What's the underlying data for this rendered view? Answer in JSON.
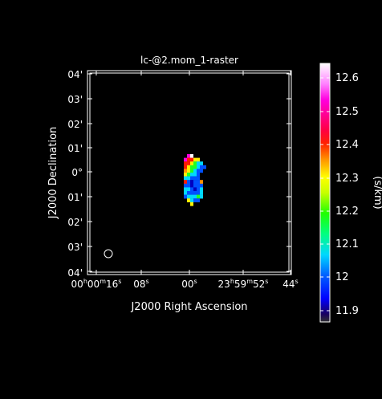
{
  "plot": {
    "title": "lc-@2.mom_1-raster",
    "xlabel": "J2000 Right Ascension",
    "ylabel": "J2000 Declination",
    "yticks": [
      "04'",
      "03'",
      "02'",
      "01'",
      "0°",
      "01'",
      "02'",
      "03'",
      "04'"
    ],
    "xticks": {
      "t0": {
        "main": "00",
        "hsup": "h",
        "mid": "00",
        "msup": "m",
        "sec": "16",
        "ssup": "s"
      },
      "t1": {
        "sec": "08",
        "ssup": "s"
      },
      "t2": {
        "sec": "00",
        "ssup": "s"
      },
      "t3": {
        "main": "23",
        "hsup": "h",
        "mid": "59",
        "msup": "m",
        "sec": "52",
        "ssup": "s"
      },
      "t4": {
        "sec": "44",
        "ssup": "s"
      }
    }
  },
  "colorbar": {
    "unit_label": "(s/km)",
    "ticks": [
      "12.6",
      "12.5",
      "12.4",
      "12.3",
      "12.2",
      "12.1",
      "12",
      "11.9"
    ],
    "range": [
      11.86,
      12.64
    ]
  },
  "colors": {
    "background": "#000000",
    "foreground": "#ffffff"
  }
}
